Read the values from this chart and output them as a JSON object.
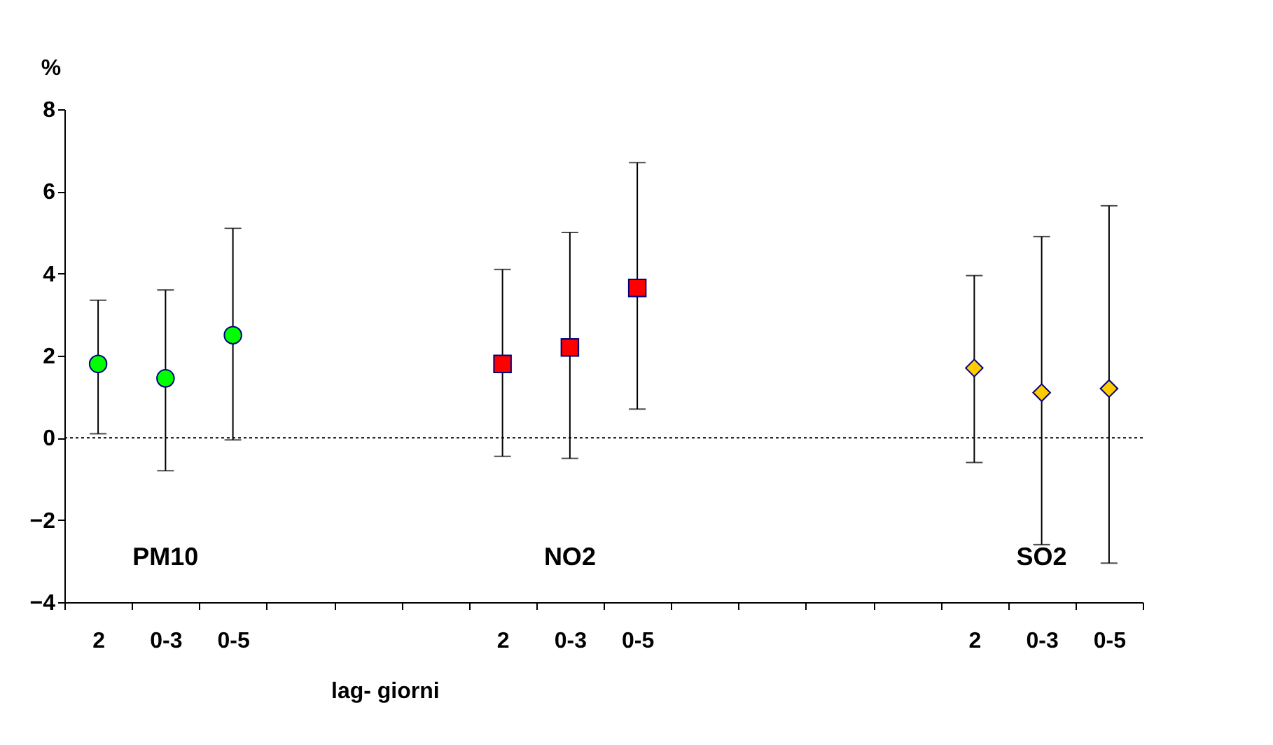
{
  "chart_data": {
    "type": "scatter",
    "ylabel": "%",
    "xlabel": "lag- giorni",
    "categories": [
      "2",
      "0-3",
      "0-5",
      null,
      null,
      null,
      "2",
      "0-3",
      "0-5",
      null,
      null,
      null,
      null,
      "2",
      "0-3",
      "0-5"
    ],
    "series": [
      {
        "color": "#00ff00",
        "marker": "circle",
        "values": [
          1.8,
          1.45,
          2.5,
          null,
          null,
          null,
          null,
          null,
          null,
          null,
          null,
          null,
          null,
          null,
          null,
          null
        ],
        "errors": [
          [
            0.1,
            3.35
          ],
          [
            -0.8,
            3.6
          ],
          [
            -0.05,
            5.1
          ],
          null,
          null,
          null,
          null,
          null,
          null,
          null,
          null,
          null,
          null,
          null,
          null,
          null
        ]
      },
      {
        "color": "#ff0000",
        "marker": "square",
        "values": [
          null,
          null,
          null,
          null,
          null,
          null,
          1.8,
          2.2,
          3.65,
          null,
          null,
          null,
          null,
          null,
          null,
          null
        ],
        "errors": [
          null,
          null,
          null,
          null,
          null,
          null,
          [
            -0.45,
            4.1
          ],
          [
            -0.5,
            5.0
          ],
          [
            0.7,
            6.7
          ],
          null,
          null,
          null,
          null,
          null,
          null,
          null
        ]
      },
      {
        "color": "#ffcc00",
        "marker": "diamond",
        "values": [
          null,
          null,
          null,
          null,
          null,
          null,
          null,
          null,
          null,
          null,
          null,
          null,
          null,
          1.7,
          1.1,
          1.2
        ],
        "errors": [
          null,
          null,
          null,
          null,
          null,
          null,
          null,
          null,
          null,
          null,
          null,
          null,
          null,
          [
            -0.6,
            3.95
          ],
          [
            -2.6,
            4.9
          ],
          [
            -3.05,
            5.65
          ]
        ]
      }
    ],
    "ylim": [
      -4,
      8
    ],
    "yticks": [
      -4,
      -2,
      0,
      2,
      4,
      6,
      8
    ],
    "grid": false,
    "ref_lines": [
      {
        "axis": "y",
        "value": 0,
        "line_style": "dotted",
        "color": "#000000"
      }
    ],
    "annotations": [
      "PM10",
      "NO2",
      "SO2"
    ]
  }
}
